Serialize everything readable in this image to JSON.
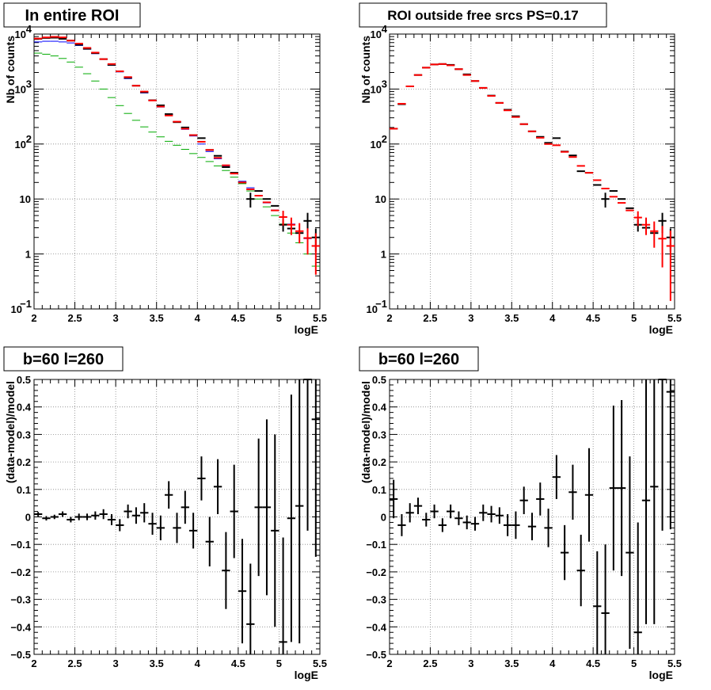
{
  "chart_data": [
    {
      "id": "p1",
      "type": "scatter",
      "title": "In entire ROI",
      "xlabel": "logE",
      "ylabel": "Nb of counts",
      "xlim": [
        2,
        5.5
      ],
      "ylog": true,
      "ylim_exp": [
        -1,
        4
      ],
      "xticks": [
        "2",
        "2.5",
        "3",
        "3.5",
        "4",
        "4.5",
        "5",
        "5.5"
      ],
      "yticks": [
        {
          "v": 0.1,
          "base": "10",
          "exp": "−1"
        },
        {
          "v": 1,
          "base": "1",
          "exp": ""
        },
        {
          "v": 10,
          "base": "10",
          "exp": ""
        },
        {
          "v": 100,
          "base": "10",
          "exp": "2"
        },
        {
          "v": 1000,
          "base": "10",
          "exp": "3"
        },
        {
          "v": 10000,
          "base": "10",
          "exp": "4"
        }
      ],
      "grid": true,
      "x": [
        2.05,
        2.15,
        2.25,
        2.35,
        2.45,
        2.55,
        2.65,
        2.75,
        2.85,
        2.95,
        3.05,
        3.15,
        3.25,
        3.35,
        3.45,
        3.55,
        3.65,
        3.75,
        3.85,
        3.95,
        4.05,
        4.15,
        4.25,
        4.35,
        4.45,
        4.55,
        4.65,
        4.75,
        4.85,
        4.95,
        5.05,
        5.15,
        5.25,
        5.35,
        5.45
      ],
      "series": [
        {
          "color": "#0000ff",
          "width": 1,
          "values": [
            7200,
            7400,
            7400,
            7200,
            6900,
            6200,
            5300,
            4400,
            3500,
            2700,
            2050,
            1550,
            1150,
            850,
            630,
            470,
            345,
            255,
            185,
            140,
            100,
            73,
            54,
            40,
            29,
            21,
            16,
            11.5,
            8.5,
            6.3,
            4.7,
            3.5,
            2.6,
            1.9,
            1.4
          ],
          "err": [
            0,
            0,
            0,
            0,
            0,
            0,
            0,
            0,
            0,
            0,
            0,
            0,
            0,
            0,
            0,
            0,
            0,
            0,
            0,
            0,
            0,
            0,
            0,
            0,
            0,
            0,
            0,
            0,
            0,
            0,
            0,
            0,
            0,
            0,
            0
          ]
        },
        {
          "color": "#00aa00",
          "width": 1,
          "values": [
            4500,
            4300,
            4000,
            3600,
            3100,
            2500,
            1900,
            1400,
            1000,
            700,
            500,
            360,
            270,
            205,
            165,
            135,
            112,
            95,
            80,
            67,
            57,
            48,
            40,
            33,
            25,
            19,
            14,
            10,
            7.2,
            5,
            3.5,
            2.4,
            1.6,
            1.0,
            0.6
          ],
          "err": [
            0,
            0,
            0,
            0,
            0,
            0,
            0,
            0,
            0,
            0,
            0,
            0,
            0,
            0,
            0,
            0,
            0,
            0,
            0,
            0,
            0,
            0,
            0,
            0,
            0,
            0,
            0,
            0,
            0,
            0,
            0,
            0,
            0,
            0,
            0
          ]
        },
        {
          "color": "#000000",
          "width": 2,
          "values": [
            8200,
            8500,
            8600,
            8200,
            7600,
            6400,
            5400,
            4500,
            3500,
            2750,
            2100,
            1600,
            1150,
            875,
            625,
            505,
            350,
            250,
            200,
            145,
            128,
            78,
            61,
            38,
            30,
            20,
            10,
            14,
            10,
            7.5,
            3.4,
            2.9,
            2.4,
            4.0,
            2.0
          ],
          "err": [
            0,
            0,
            0,
            0,
            0,
            0,
            0,
            0,
            0,
            0,
            0,
            0,
            0,
            0,
            0,
            0,
            0,
            0,
            0,
            0,
            0,
            0,
            0,
            0,
            0,
            0,
            0.3,
            0,
            0,
            0,
            0.25,
            0,
            0,
            0.4,
            0.45
          ]
        },
        {
          "color": "#ff0000",
          "width": 2,
          "values": [
            8300,
            8700,
            8900,
            8700,
            7600,
            6700,
            5600,
            4600,
            3500,
            2850,
            2100,
            1650,
            1150,
            900,
            620,
            480,
            330,
            255,
            190,
            145,
            110,
            78,
            56,
            41,
            29,
            20,
            15,
            11.5,
            8.7,
            6.2,
            4.7,
            3.4,
            2.6,
            1.95,
            1.4
          ],
          "err": [
            0,
            0,
            0,
            0,
            0,
            0,
            0,
            0,
            0,
            0,
            0,
            0,
            0,
            0,
            0,
            0,
            0,
            0,
            0,
            0,
            0,
            0,
            0,
            0,
            0,
            0,
            0,
            0,
            0,
            0,
            0.3,
            0.35,
            0.4,
            0.5,
            0.7
          ]
        }
      ]
    },
    {
      "id": "p2",
      "type": "scatter",
      "title": "ROI outside free srcs PS=0.17",
      "xlabel": "logE",
      "ylabel": "Nb of counts",
      "xlim": [
        2,
        5.5
      ],
      "ylog": true,
      "ylim_exp": [
        -1,
        4
      ],
      "xticks": [
        "2",
        "2.5",
        "3",
        "3.5",
        "4",
        "4.5",
        "5",
        "5.5"
      ],
      "yticks": [
        {
          "v": 0.1,
          "base": "10",
          "exp": "−1"
        },
        {
          "v": 1,
          "base": "1",
          "exp": ""
        },
        {
          "v": 10,
          "base": "10",
          "exp": ""
        },
        {
          "v": 100,
          "base": "10",
          "exp": "2"
        },
        {
          "v": 1000,
          "base": "10",
          "exp": "3"
        },
        {
          "v": 10000,
          "base": "10",
          "exp": "4"
        }
      ],
      "grid": true,
      "x": [
        2.05,
        2.15,
        2.25,
        2.35,
        2.45,
        2.55,
        2.65,
        2.75,
        2.85,
        2.95,
        3.05,
        3.15,
        3.25,
        3.35,
        3.45,
        3.55,
        3.65,
        3.75,
        3.85,
        3.95,
        4.05,
        4.15,
        4.25,
        4.35,
        4.45,
        4.55,
        4.65,
        4.75,
        4.85,
        4.95,
        5.05,
        5.15,
        5.25,
        5.35,
        5.45
      ],
      "series": [
        {
          "color": "#000000",
          "width": 2,
          "values": [
            190,
            530,
            1120,
            1800,
            2450,
            2800,
            2850,
            2750,
            2300,
            1850,
            1400,
            1050,
            760,
            560,
            420,
            320,
            230,
            170,
            135,
            105,
            128,
            73,
            62,
            32,
            30,
            18,
            10,
            14,
            10,
            6.8,
            3.4,
            3.0,
            2.4,
            4.0,
            2.0
          ],
          "err": [
            0,
            0,
            0,
            0,
            0,
            0,
            0,
            0,
            0,
            0,
            0,
            0,
            0,
            0,
            0,
            0,
            0,
            0,
            0,
            0,
            0,
            0,
            0,
            0,
            0,
            0,
            0.3,
            0,
            0,
            0,
            0.25,
            0,
            0,
            0.4,
            0.45
          ]
        },
        {
          "color": "#ff0000",
          "width": 2,
          "values": [
            190,
            540,
            1120,
            1800,
            2450,
            2800,
            2850,
            2700,
            2300,
            1800,
            1400,
            1050,
            750,
            560,
            410,
            310,
            230,
            170,
            130,
            100,
            95,
            72,
            58,
            40,
            30,
            22,
            15.5,
            11,
            8.5,
            6.2,
            4.6,
            3.4,
            2.6,
            1.9,
            1.4
          ],
          "err": [
            0,
            0,
            0,
            0,
            0,
            0,
            0,
            0,
            0,
            0,
            0,
            0,
            0,
            0,
            0,
            0,
            0,
            0,
            0,
            0,
            0,
            0,
            0,
            0,
            0,
            0,
            0,
            0,
            0,
            0,
            0.3,
            0.35,
            0.5,
            0.7,
            0.9
          ]
        }
      ]
    },
    {
      "id": "p3",
      "type": "scatter",
      "title": "b=60 l=260",
      "xlabel": "logE",
      "ylabel": "(data-model)/model",
      "xlim": [
        2,
        5.5
      ],
      "ylog": false,
      "ylim": [
        -0.5,
        0.5
      ],
      "xticks": [
        "2",
        "2.5",
        "3",
        "3.5",
        "4",
        "4.5",
        "5",
        "5.5"
      ],
      "yticks": [
        {
          "v": -0.5,
          "label": "−0.5"
        },
        {
          "v": -0.4,
          "label": "−0.4"
        },
        {
          "v": -0.3,
          "label": "−0.3"
        },
        {
          "v": -0.2,
          "label": "−0.2"
        },
        {
          "v": -0.1,
          "label": "−0.1"
        },
        {
          "v": 0,
          "label": "0"
        },
        {
          "v": 0.1,
          "label": "0.1"
        },
        {
          "v": 0.2,
          "label": "0.2"
        },
        {
          "v": 0.3,
          "label": "0.3"
        },
        {
          "v": 0.4,
          "label": "0.4"
        },
        {
          "v": 0.5,
          "label": "0.5"
        }
      ],
      "grid": true,
      "x": [
        2.05,
        2.15,
        2.25,
        2.35,
        2.45,
        2.55,
        2.65,
        2.75,
        2.85,
        2.95,
        3.05,
        3.15,
        3.25,
        3.35,
        3.45,
        3.55,
        3.65,
        3.75,
        3.85,
        3.95,
        4.05,
        4.15,
        4.25,
        4.35,
        4.45,
        4.55,
        4.65,
        4.75,
        4.85,
        4.95,
        5.05,
        5.15,
        5.25,
        5.35,
        5.45
      ],
      "series": [
        {
          "color": "#000000",
          "width": 2,
          "values": [
            0.01,
            -0.005,
            0.0,
            0.01,
            -0.01,
            0.0,
            0.0,
            0.005,
            0.01,
            -0.01,
            -0.03,
            0.02,
            0.005,
            0.015,
            -0.025,
            -0.04,
            0.08,
            -0.04,
            0.035,
            -0.05,
            0.14,
            -0.09,
            0.11,
            -0.195,
            0.02,
            -0.27,
            -0.39,
            0.035,
            0.035,
            -0.05,
            -0.455,
            -0.005,
            0.04,
            0.5,
            0.355
          ],
          "err": [
            0.008,
            0.008,
            0.008,
            0.01,
            0.01,
            0.012,
            0.012,
            0.015,
            0.018,
            0.02,
            0.022,
            0.025,
            0.03,
            0.035,
            0.04,
            0.045,
            0.05,
            0.055,
            0.06,
            0.065,
            0.08,
            0.09,
            0.1,
            0.14,
            0.17,
            0.19,
            0.22,
            0.25,
            0.32,
            0.35,
            0.38,
            0.45,
            0.5,
            0.55,
            0.5
          ]
        }
      ]
    },
    {
      "id": "p4",
      "type": "scatter",
      "title": "b=60 l=260",
      "xlabel": "logE",
      "ylabel": "(data-model)/model",
      "xlim": [
        2,
        5.5
      ],
      "ylog": false,
      "ylim": [
        -0.5,
        0.5
      ],
      "xticks": [
        "2",
        "2.5",
        "3",
        "3.5",
        "4",
        "4.5",
        "5",
        "5.5"
      ],
      "yticks": [
        {
          "v": -0.5,
          "label": "−0.5"
        },
        {
          "v": -0.4,
          "label": "−0.4"
        },
        {
          "v": -0.3,
          "label": "−0.3"
        },
        {
          "v": -0.2,
          "label": "−0.2"
        },
        {
          "v": -0.1,
          "label": "−0.1"
        },
        {
          "v": 0,
          "label": "0"
        },
        {
          "v": 0.1,
          "label": "0.1"
        },
        {
          "v": 0.2,
          "label": "0.2"
        },
        {
          "v": 0.3,
          "label": "0.3"
        },
        {
          "v": 0.4,
          "label": "0.4"
        },
        {
          "v": 0.5,
          "label": "0.5"
        }
      ],
      "grid": true,
      "x": [
        2.05,
        2.15,
        2.25,
        2.35,
        2.45,
        2.55,
        2.65,
        2.75,
        2.85,
        2.95,
        3.05,
        3.15,
        3.25,
        3.35,
        3.45,
        3.55,
        3.65,
        3.75,
        3.85,
        3.95,
        4.05,
        4.15,
        4.25,
        4.35,
        4.45,
        4.55,
        4.65,
        4.75,
        4.85,
        4.95,
        5.05,
        5.15,
        5.25,
        5.35,
        5.45
      ],
      "series": [
        {
          "color": "#000000",
          "width": 2,
          "values": [
            0.065,
            -0.03,
            0.015,
            0.04,
            -0.01,
            0.02,
            -0.03,
            0.02,
            -0.005,
            -0.02,
            -0.025,
            0.015,
            0.01,
            0.005,
            -0.03,
            -0.03,
            0.06,
            -0.035,
            0.065,
            -0.04,
            0.145,
            -0.13,
            0.09,
            -0.195,
            0.08,
            -0.325,
            -0.35,
            0.105,
            0.105,
            -0.13,
            -0.42,
            0.06,
            0.11,
            0.5,
            0.455
          ],
          "err": [
            0.07,
            0.04,
            0.035,
            0.03,
            0.025,
            0.025,
            0.025,
            0.025,
            0.025,
            0.025,
            0.025,
            0.03,
            0.03,
            0.03,
            0.04,
            0.05,
            0.05,
            0.05,
            0.06,
            0.07,
            0.08,
            0.1,
            0.1,
            0.13,
            0.17,
            0.2,
            0.25,
            0.3,
            0.32,
            0.35,
            0.4,
            0.45,
            0.5,
            0.55,
            0.5
          ]
        }
      ]
    }
  ]
}
